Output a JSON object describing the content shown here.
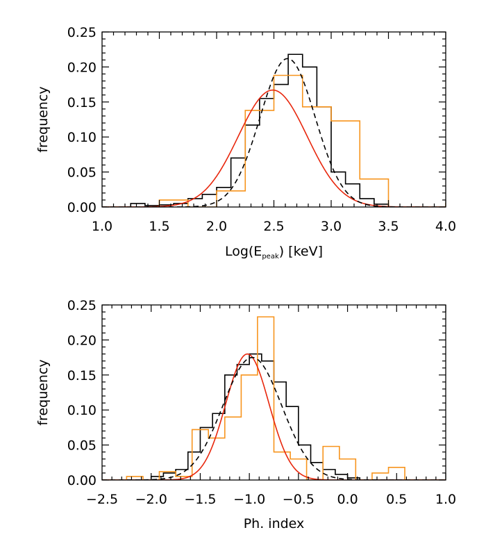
{
  "chart_data": [
    {
      "type": "histogram",
      "xlabel": "Log(E",
      "xlabel_subscript": "peak",
      "xlabel_suffix": ") [keV]",
      "ylabel": "frequency",
      "xlim": [
        1.0,
        4.0
      ],
      "ylim": [
        0.0,
        0.25
      ],
      "xticks": [
        "1.0",
        "1.5",
        "2.0",
        "2.5",
        "3.0",
        "3.5",
        "4.0"
      ],
      "yticks": [
        "0.00",
        "0.05",
        "0.10",
        "0.15",
        "0.20",
        "0.25"
      ],
      "grid": false,
      "series": [
        {
          "style": "step",
          "color": "#000000",
          "bin_edges": [
            1.25,
            1.375,
            1.5,
            1.625,
            1.75,
            1.875,
            2.0,
            2.125,
            2.25,
            2.375,
            2.5,
            2.625,
            2.75,
            2.875,
            3.0,
            3.125,
            3.25,
            3.375,
            3.5
          ],
          "values": [
            0.005,
            0.002,
            0.003,
            0.005,
            0.012,
            0.018,
            0.028,
            0.07,
            0.117,
            0.155,
            0.175,
            0.218,
            0.2,
            0.143,
            0.05,
            0.033,
            0.012,
            0.004
          ]
        },
        {
          "style": "step",
          "color": "#f7941d",
          "bin_edges": [
            1.5,
            1.75,
            2.0,
            2.25,
            2.5,
            2.75,
            3.0,
            3.25,
            3.5,
            3.75,
            4.0
          ],
          "values": [
            0.01,
            0.0,
            0.023,
            0.138,
            0.188,
            0.143,
            0.123,
            0.04,
            0.0,
            0.0,
            0.006
          ]
        },
        {
          "style": "gaussian",
          "color": "#e8260c",
          "line": "solid",
          "mean": 2.49,
          "sigma": 0.3,
          "peak": 0.167
        },
        {
          "style": "gaussian",
          "color": "#000000",
          "line": "dashed",
          "mean": 2.62,
          "sigma": 0.24,
          "peak": 0.212
        }
      ]
    },
    {
      "type": "histogram",
      "xlabel": "Ph. index",
      "ylabel": "frequency",
      "xlim": [
        -2.5,
        1.0
      ],
      "ylim": [
        0.0,
        0.25
      ],
      "xticks": [
        "−2.5",
        "−2.0",
        "−1.5",
        "−1.0",
        "−0.5",
        "0.0",
        "0.5",
        "1.0"
      ],
      "yticks": [
        "0.00",
        "0.05",
        "0.10",
        "0.15",
        "0.20",
        "0.25"
      ],
      "grid": false,
      "series": [
        {
          "style": "step",
          "color": "#000000",
          "bin_edges": [
            -2.0,
            -1.875,
            -1.75,
            -1.625,
            -1.5,
            -1.375,
            -1.25,
            -1.125,
            -1.0,
            -0.875,
            -0.75,
            -0.625,
            -0.5,
            -0.375,
            -0.25,
            -0.125,
            0.0,
            0.125
          ],
          "values": [
            0.005,
            0.01,
            0.015,
            0.04,
            0.075,
            0.095,
            0.15,
            0.165,
            0.18,
            0.17,
            0.14,
            0.105,
            0.05,
            0.025,
            0.015,
            0.008,
            0.003
          ]
        },
        {
          "style": "step",
          "color": "#f7941d",
          "bin_edges": [
            -2.25,
            -2.083,
            -1.917,
            -1.75,
            -1.583,
            -1.417,
            -1.25,
            -1.083,
            -0.917,
            -0.75,
            -0.583,
            -0.417,
            -0.25,
            -0.083,
            0.083,
            0.25,
            0.417,
            0.583
          ],
          "values": [
            0.005,
            0.0,
            0.012,
            0.005,
            0.072,
            0.06,
            0.09,
            0.15,
            0.233,
            0.04,
            0.03,
            0.0,
            0.048,
            0.03,
            0.0,
            0.01,
            0.018
          ]
        },
        {
          "style": "gaussian",
          "color": "#e8260c",
          "line": "solid",
          "mean": -1.02,
          "sigma": 0.22,
          "peak": 0.18
        },
        {
          "style": "gaussian",
          "color": "#000000",
          "line": "dashed",
          "mean": -0.97,
          "sigma": 0.3,
          "peak": 0.175
        }
      ]
    }
  ]
}
